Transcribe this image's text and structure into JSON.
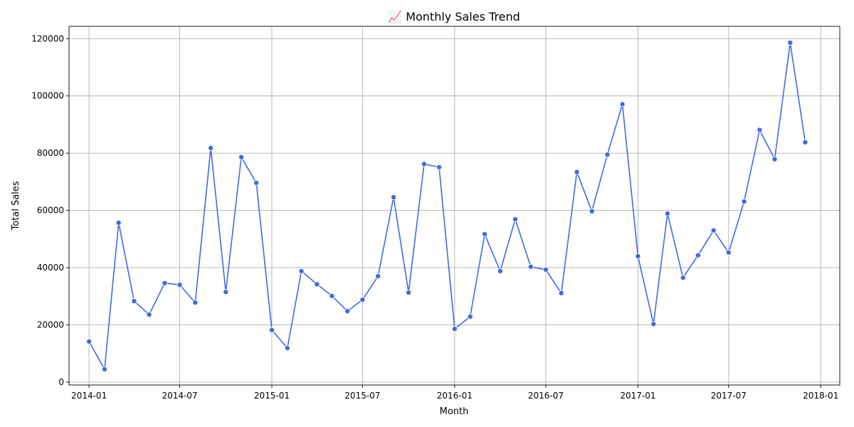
{
  "chart_data": {
    "type": "line",
    "title": "📈 Monthly Sales Trend",
    "xlabel": "Month",
    "ylabel": "Total Sales",
    "line_color": "#4169e1",
    "grid": true,
    "legend": "none",
    "xlim": [
      "2013-11-22",
      "2018-02-08"
    ],
    "ylim": [
      -1000,
      124300
    ],
    "x_ticks": [
      "2014-01",
      "2014-07",
      "2015-01",
      "2015-07",
      "2016-01",
      "2016-07",
      "2017-01",
      "2017-07",
      "2018-01"
    ],
    "y_ticks": [
      "0",
      "20000",
      "40000",
      "60000",
      "80000",
      "100000",
      "120000"
    ],
    "x": [
      "2014-01-01",
      "2014-02-01",
      "2014-03-01",
      "2014-04-01",
      "2014-05-01",
      "2014-06-01",
      "2014-07-01",
      "2014-08-01",
      "2014-09-01",
      "2014-10-01",
      "2014-11-01",
      "2014-12-01",
      "2015-01-01",
      "2015-02-01",
      "2015-03-01",
      "2015-04-01",
      "2015-05-01",
      "2015-06-01",
      "2015-07-01",
      "2015-08-01",
      "2015-09-01",
      "2015-10-01",
      "2015-11-01",
      "2015-12-01",
      "2016-01-01",
      "2016-02-01",
      "2016-03-01",
      "2016-04-01",
      "2016-05-01",
      "2016-06-01",
      "2016-07-01",
      "2016-08-01",
      "2016-09-01",
      "2016-10-01",
      "2016-11-01",
      "2016-12-01",
      "2017-01-01",
      "2017-02-01",
      "2017-03-01",
      "2017-04-01",
      "2017-05-01",
      "2017-06-01",
      "2017-07-01",
      "2017-08-01",
      "2017-09-01",
      "2017-10-01",
      "2017-11-01",
      "2017-12-01"
    ],
    "series": [
      {
        "values": [
          14200,
          4500,
          55700,
          28300,
          23600,
          34600,
          34000,
          27800,
          81800,
          31500,
          78600,
          69600,
          18200,
          11900,
          38800,
          34200,
          30100,
          24800,
          28800,
          37000,
          64600,
          31300,
          76200,
          75100,
          18600,
          22900,
          51700,
          38800,
          56900,
          40300,
          39300,
          31100,
          73400,
          59700,
          79500,
          97100,
          44000,
          20300,
          58900,
          36500,
          44300,
          53000,
          45300,
          63100,
          88100,
          77900,
          118600,
          83800
        ]
      }
    ]
  }
}
